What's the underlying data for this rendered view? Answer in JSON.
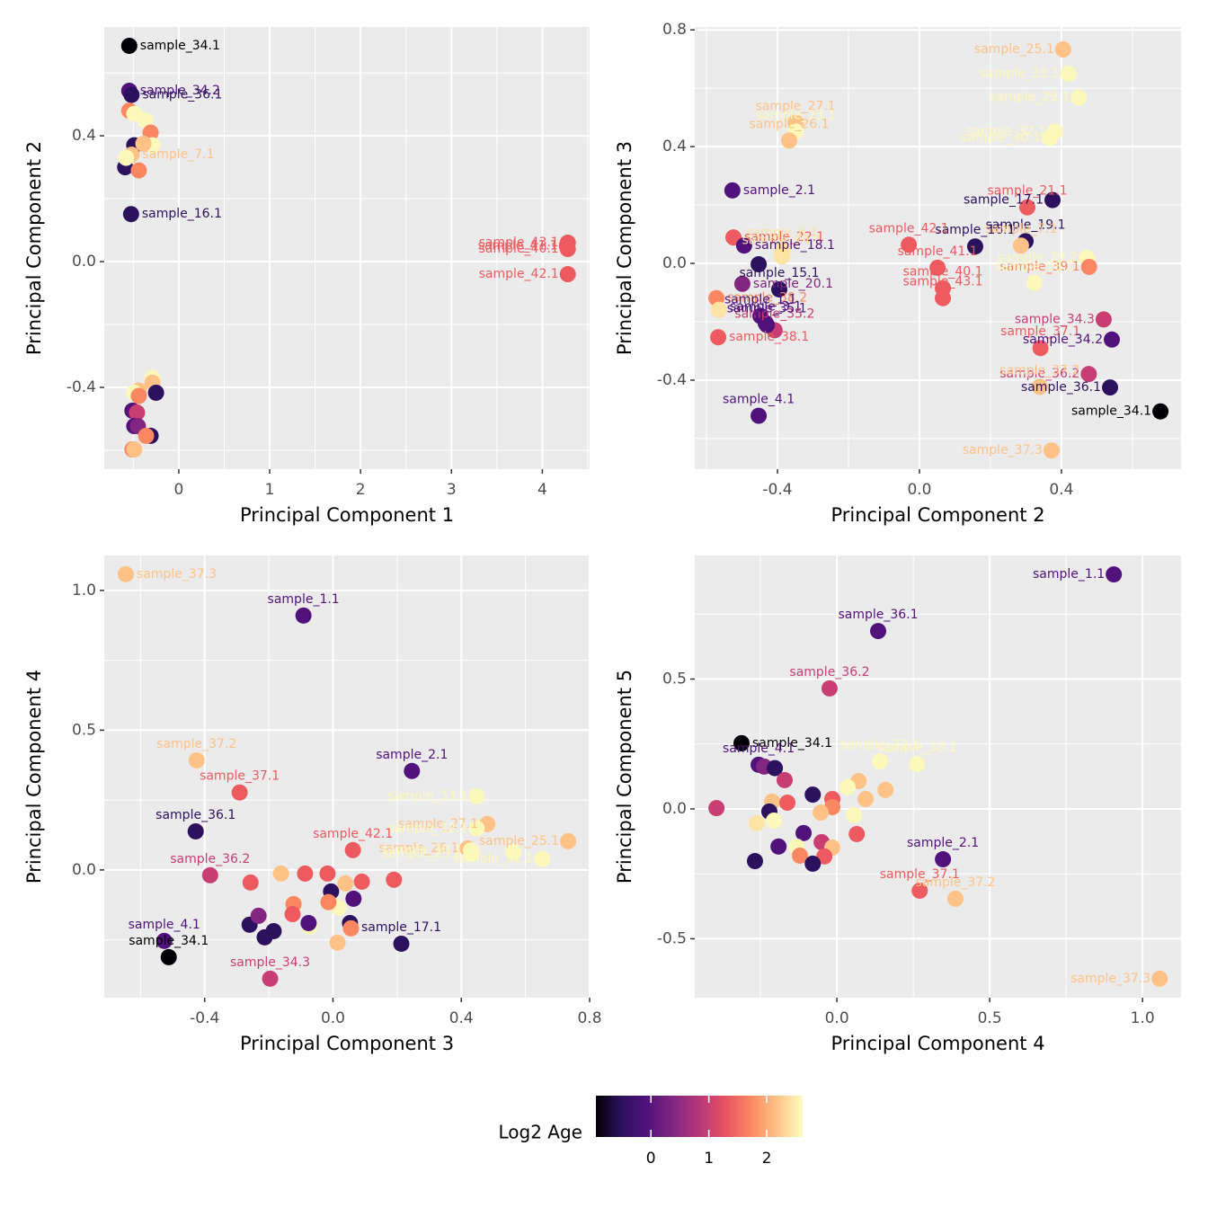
{
  "chart_data": [
    {
      "type": "scatter",
      "xlabel": "Principal Component 1",
      "ylabel": "Principal Component 2",
      "xlim": [
        -0.82,
        4.52
      ],
      "ylim": [
        -0.66,
        0.746
      ],
      "xticks": [
        0,
        1,
        2,
        3,
        4
      ],
      "yticks": [
        -0.4,
        {
          "value": 0,
          "label": "0.0"
        },
        0.4
      ],
      "grid": true,
      "x": [
        -0.545,
        -0.545,
        -0.52,
        -0.545,
        -0.49,
        -0.37,
        -0.31,
        -0.29,
        -0.49,
        -0.39,
        -0.59,
        -0.52,
        -0.44,
        -0.58,
        -0.525,
        4.28,
        4.28,
        4.27,
        4.28,
        -0.29,
        -0.29,
        -0.25,
        -0.44,
        -0.49,
        -0.44,
        -0.51,
        -0.46,
        -0.49,
        -0.45,
        -0.31,
        -0.36,
        -0.51,
        -0.49
      ],
      "y": [
        0.686,
        0.543,
        0.53,
        0.48,
        0.47,
        0.45,
        0.41,
        0.37,
        0.37,
        0.375,
        0.3,
        0.34,
        0.29,
        0.33,
        0.151,
        0.06,
        0.04,
        0.05,
        -0.04,
        -0.37,
        -0.385,
        -0.417,
        -0.41,
        -0.417,
        -0.427,
        -0.474,
        -0.48,
        -0.523,
        -0.523,
        -0.554,
        -0.554,
        -0.597,
        -0.597
      ],
      "colors": [
        "#000004",
        "#51127c",
        "#2c115f",
        "#fb8761",
        "#fcf8ba",
        "#fcf8ba",
        "#fb8761",
        "#fcf8ba",
        "#2c115f",
        "#fec287",
        "#2c115f",
        "#fec287",
        "#fb8761",
        "#fcf8ba",
        "#2c115f",
        "#ed5a5f",
        "#ed5a5f",
        "#ed5a5f",
        "#ed5a5f",
        "#fcf8ba",
        "#fec287",
        "#2c115f",
        "#fec287",
        "#fcf8ba",
        "#fb8761",
        "#51127c",
        "#c83e73",
        "#51127c",
        "#822681",
        "#2c115f",
        "#fb8761",
        "#fb8761",
        "#fec287"
      ],
      "labels": [
        "sample_34.1",
        "sample_34.2",
        "sample_36.1",
        null,
        null,
        null,
        null,
        null,
        null,
        null,
        null,
        "sample_7.1",
        null,
        null,
        "sample_16.1",
        "sample_43.1",
        "sample_40.1",
        "sample_41.1",
        "sample_42.1",
        null,
        null,
        null,
        null,
        null,
        null,
        null,
        null,
        null,
        null,
        null,
        null,
        null,
        null
      ]
    },
    {
      "type": "scatter",
      "xlabel": "Principal Component 2",
      "ylabel": "Principal Component 3",
      "xlim": [
        -0.633,
        0.737
      ],
      "ylim": [
        -0.705,
        0.81
      ],
      "xticks": [
        -0.4,
        {
          "value": 0,
          "label": "0.0"
        },
        0.4
      ],
      "yticks": [
        -0.4,
        {
          "value": 0,
          "label": "0.0"
        },
        0.4,
        0.8
      ],
      "grid": true,
      "x": [
        0.405,
        0.42,
        0.449,
        0.382,
        0.367,
        -0.349,
        -0.349,
        -0.367,
        -0.527,
        0.304,
        0.375,
        0.299,
        0.157,
        -0.03,
        -0.524,
        -0.387,
        -0.387,
        0.286,
        0.471,
        0.478,
        -0.494,
        -0.453,
        -0.395,
        0.051,
        0.066,
        0.066,
        -0.499,
        -0.572,
        -0.565,
        0.324,
        -0.448,
        -0.433,
        -0.408,
        -0.43,
        0.519,
        -0.567,
        0.341,
        0.477,
        0.542,
        0.537,
        0.679,
        0.339,
        0.372,
        -0.453
      ],
      "y": [
        0.733,
        0.65,
        0.568,
        0.452,
        0.43,
        0.482,
        0.452,
        0.421,
        0.25,
        0.192,
        0.217,
        0.076,
        0.058,
        0.064,
        0.089,
        0.049,
        0.024,
        0.061,
        0.018,
        -0.012,
        0.061,
        -0.003,
        -0.089,
        -0.015,
        -0.085,
        -0.119,
        -0.07,
        -0.119,
        -0.159,
        -0.067,
        -0.18,
        -0.205,
        -0.229,
        -0.211,
        -0.192,
        -0.253,
        -0.29,
        -0.379,
        -0.261,
        -0.425,
        -0.507,
        -0.423,
        -0.641,
        -0.522
      ],
      "colors": [
        "#fec287",
        "#fcf8ba",
        "#fcf8ba",
        "#fcf8ba",
        "#fcf8ba",
        "#fec287",
        "#fcf8ba",
        "#fec287",
        "#51127c",
        "#ed5a5f",
        "#2c115f",
        "#2c115f",
        "#2c115f",
        "#ed5a5f",
        "#ed5a5f",
        "#fde3a4",
        "#fde3a4",
        "#fec287",
        "#fcf8ba",
        "#fb8761",
        "#51127c",
        "#2c115f",
        "#2c115f",
        "#ed5a5f",
        "#ed5a5f",
        "#ed5a5f",
        "#822681",
        "#fb8761",
        "#fde3a4",
        "#fcf8ba",
        "#51127c",
        "#51127c",
        "#c83e73",
        "#51127c",
        "#c83e73",
        "#ed5a5f",
        "#ed5a5f",
        "#c83e73",
        "#51127c",
        "#2c115f",
        "#000004",
        "#fec287",
        "#fec287",
        "#51127c"
      ],
      "labels": [
        "sample_25.1",
        "sample_33.1",
        "sample_29.1",
        "sample_32.1",
        "sample_30.1",
        "sample_27.1",
        "sample_23.1",
        "sample_26.1",
        "sample_2.1",
        "sample_21.1",
        "sample_17.1",
        "sample_19.1",
        "sample_16.1",
        "sample_42.1",
        "sample_22.1",
        "sample_6.1",
        "sample_24.1",
        "sample_7.1",
        "sample_39.2",
        "sample_39.1",
        "sample_18.1",
        null,
        "sample_15.1",
        "sample_41.1",
        "sample_40.1",
        "sample_43.1",
        "sample_20.1",
        "sample_38.2",
        null,
        "sample_28.1",
        "sample_1.1",
        "sample_3.1",
        "sample_35.2",
        "sample_35.1",
        "sample_34.3",
        "sample_38.1",
        "sample_37.1",
        "sample_36.2",
        "sample_34.2",
        "sample_36.1",
        "sample_34.1",
        "sample_37.2",
        "sample_37.3",
        "sample_4.1"
      ]
    },
    {
      "type": "scatter",
      "xlabel": "Principal Component 3",
      "ylabel": "Principal Component 4",
      "xlim": [
        -0.713,
        0.8
      ],
      "ylim": [
        -0.457,
        1.125
      ],
      "xticks": [
        -0.4,
        {
          "value": 0,
          "label": "0.0"
        },
        0.4,
        0.8
      ],
      "yticks": [
        {
          "value": 0,
          "label": "0.0"
        },
        0.5,
        {
          "value": 1,
          "label": "1.0"
        }
      ],
      "grid": true,
      "x": [
        -0.646,
        -0.092,
        -0.425,
        -0.291,
        0.246,
        0.448,
        0.481,
        0.448,
        0.42,
        0.562,
        0.733,
        -0.428,
        0.062,
        -0.383,
        -0.257,
        -0.162,
        -0.087,
        -0.017,
        0.09,
        0.19,
        0.039,
        0.431,
        0.43,
        0.652,
        -0.006,
        0.064,
        -0.123,
        -0.126,
        -0.073,
        -0.076,
        0.017,
        -0.014,
        0.053,
        0.056,
        0.014,
        -0.26,
        -0.232,
        -0.185,
        -0.213,
        0.213,
        -0.526,
        -0.512,
        -0.196
      ],
      "y": [
        1.058,
        0.91,
        0.392,
        0.277,
        0.354,
        0.264,
        0.164,
        0.148,
        0.077,
        0.064,
        0.103,
        0.138,
        0.071,
        -0.019,
        -0.045,
        -0.013,
        -0.013,
        -0.013,
        -0.042,
        -0.035,
        -0.048,
        0.058,
        0.07,
        0.039,
        -0.077,
        -0.103,
        -0.122,
        -0.158,
        -0.203,
        -0.19,
        -0.135,
        -0.115,
        -0.19,
        -0.209,
        -0.26,
        -0.196,
        -0.164,
        -0.219,
        -0.241,
        -0.264,
        -0.254,
        -0.312,
        -0.389
      ],
      "colors": [
        "#fec287",
        "#51127c",
        "#fec287",
        "#ed5a5f",
        "#51127c",
        "#fcf8ba",
        "#fec287",
        "#fcf8ba",
        "#fec287",
        "#fcf8ba",
        "#fec287",
        "#2c115f",
        "#ed5a5f",
        "#c83e73",
        "#ed5a5f",
        "#fec287",
        "#ed5a5f",
        "#ed5a5f",
        "#ed5a5f",
        "#ed5a5f",
        "#fec287",
        "#fcf8ba",
        "#fcf8ba",
        "#fcf8ba",
        "#2c115f",
        "#51127c",
        "#fb8761",
        "#ed5a5f",
        "#fcf8ba",
        "#51127c",
        "#fcf8ba",
        "#fb8761",
        "#2c115f",
        "#fb8761",
        "#fec287",
        "#2c115f",
        "#822681",
        "#2c115f",
        "#2c115f",
        "#2c115f",
        "#51127c",
        "#000004",
        "#c83e73"
      ],
      "labels": [
        "sample_37.3",
        "sample_1.1",
        "sample_37.2",
        "sample_37.1",
        "sample_2.1",
        "sample_33.1",
        "sample_27.1",
        "sample_32.1",
        "sample_26.1",
        null,
        "sample_25.1",
        "sample_36.1",
        "sample_42.1",
        "sample_36.2",
        null,
        null,
        null,
        null,
        null,
        null,
        null,
        "sample_29.1",
        "sample_30.1",
        "sample_31.1",
        null,
        null,
        null,
        null,
        null,
        null,
        null,
        null,
        null,
        null,
        null,
        null,
        null,
        null,
        null,
        "sample_17.1",
        "sample_4.1",
        "sample_34.1",
        "sample_34.3"
      ]
    },
    {
      "type": "scatter",
      "xlabel": "Principal Component 4",
      "ylabel": "Principal Component 5",
      "xlim": [
        -0.465,
        1.126
      ],
      "ylim": [
        -0.727,
        0.976
      ],
      "xticks": [
        {
          "value": 0,
          "label": "0.0"
        },
        0.5,
        {
          "value": 1,
          "label": "1.0"
        }
      ],
      "yticks": [
        -0.5,
        {
          "value": 0,
          "label": "0.0"
        },
        0.5
      ],
      "grid": true,
      "x": [
        0.906,
        0.135,
        -0.024,
        -0.312,
        -0.256,
        -0.238,
        -0.203,
        0.262,
        0.141,
        -0.171,
        0.071,
        0.035,
        0.159,
        0.094,
        -0.079,
        -0.212,
        -0.162,
        -0.015,
        -0.015,
        -0.053,
        0.056,
        -0.394,
        -0.221,
        -0.262,
        -0.206,
        -0.109,
        0.065,
        -0.05,
        -0.015,
        -0.191,
        -0.132,
        -0.121,
        -0.041,
        -0.079,
        -0.268,
        0.347,
        0.271,
        0.388,
        1.056
      ],
      "y": [
        0.903,
        0.685,
        0.464,
        0.253,
        0.17,
        0.163,
        0.157,
        0.173,
        0.183,
        0.111,
        0.107,
        0.083,
        0.073,
        0.038,
        0.055,
        0.028,
        0.024,
        0.038,
        0.007,
        -0.014,
        -0.024,
        0.003,
        -0.01,
        -0.055,
        -0.045,
        -0.093,
        -0.097,
        -0.128,
        -0.149,
        -0.145,
        -0.145,
        -0.18,
        -0.183,
        -0.211,
        -0.201,
        -0.194,
        -0.315,
        -0.346,
        -0.654
      ],
      "colors": [
        "#51127c",
        "#51127c",
        "#c83e73",
        "#000004",
        "#51127c",
        "#822681",
        "#2c115f",
        "#fcf8ba",
        "#fcf8ba",
        "#c83e73",
        "#fec287",
        "#fcf8ba",
        "#fec287",
        "#fec287",
        "#2c115f",
        "#fec287",
        "#ed5a5f",
        "#ed5a5f",
        "#fb8761",
        "#fec287",
        "#fcf8ba",
        "#c83e73",
        "#2c115f",
        "#fde3a4",
        "#fcf8ba",
        "#51127c",
        "#ed5a5f",
        "#c83e73",
        "#fec287",
        "#51127c",
        "#fcf8ba",
        "#fb8761",
        "#ed5a5f",
        "#2c115f",
        "#2c115f",
        "#51127c",
        "#ed5a5f",
        "#fec287",
        "#fec287"
      ],
      "labels": [
        "sample_1.1",
        "sample_36.1",
        "sample_36.2",
        "sample_34.1",
        "sample_4.1",
        null,
        null,
        "sample_33.1",
        "sample_32.1",
        null,
        null,
        null,
        null,
        null,
        null,
        null,
        null,
        null,
        null,
        null,
        null,
        null,
        null,
        null,
        null,
        null,
        null,
        null,
        null,
        null,
        null,
        null,
        null,
        null,
        null,
        "sample_2.1",
        "sample_37.1",
        "sample_37.2",
        "sample_37.3"
      ]
    }
  ],
  "colorbar": {
    "title": "Log2 Age",
    "lim": [
      -0.95,
      2.62
    ],
    "ticks": [
      0,
      1,
      2
    ],
    "colors": [
      "#000004",
      "#2c115f",
      "#51127c",
      "#822681",
      "#b73779",
      "#e75263",
      "#fc8961",
      "#fec287",
      "#fcfdbf"
    ]
  }
}
